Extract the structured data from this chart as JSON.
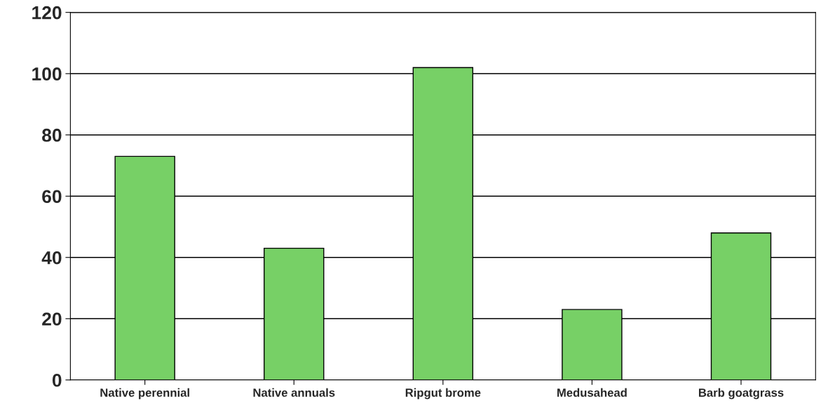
{
  "chart_data": {
    "type": "bar",
    "categories": [
      "Native perennial",
      "Native annuals",
      "Ripgut brome",
      "Medusahead",
      "Barb goatgrass"
    ],
    "values": [
      73,
      43,
      102,
      23,
      48
    ],
    "color": "#77d066",
    "ylim": [
      0,
      120
    ],
    "yticks": [
      0,
      20,
      40,
      60,
      80,
      100,
      120
    ],
    "grid": "y"
  }
}
